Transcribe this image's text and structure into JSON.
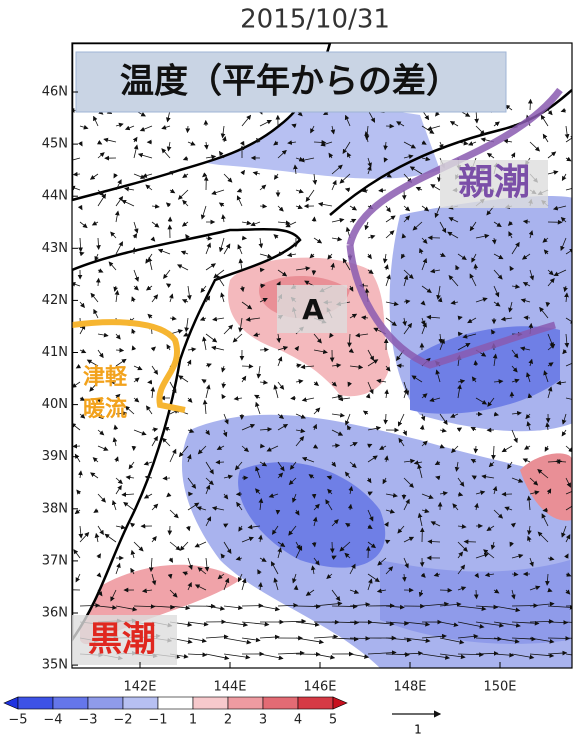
{
  "title": "2015/10/31",
  "map": {
    "latitude_ticks": [
      "46N",
      "45N",
      "44N",
      "43N",
      "42N",
      "41N",
      "40N",
      "39N",
      "38N",
      "37N",
      "36N",
      "35N"
    ],
    "longitude_ticks": [
      "142E",
      "144E",
      "146E",
      "148E",
      "150E"
    ],
    "labels": {
      "heading": "温度（平年からの差）",
      "oyashio": "親潮",
      "point": "A",
      "tsugaru": [
        "津軽",
        "暖流"
      ],
      "kuroshio": "黒潮"
    }
  },
  "colorbar": {
    "labels": [
      "−5",
      "−4",
      "−3",
      "−2",
      "−1",
      "1",
      "2",
      "3",
      "4",
      "5"
    ]
  },
  "vector_scale": {
    "label": "1"
  }
}
